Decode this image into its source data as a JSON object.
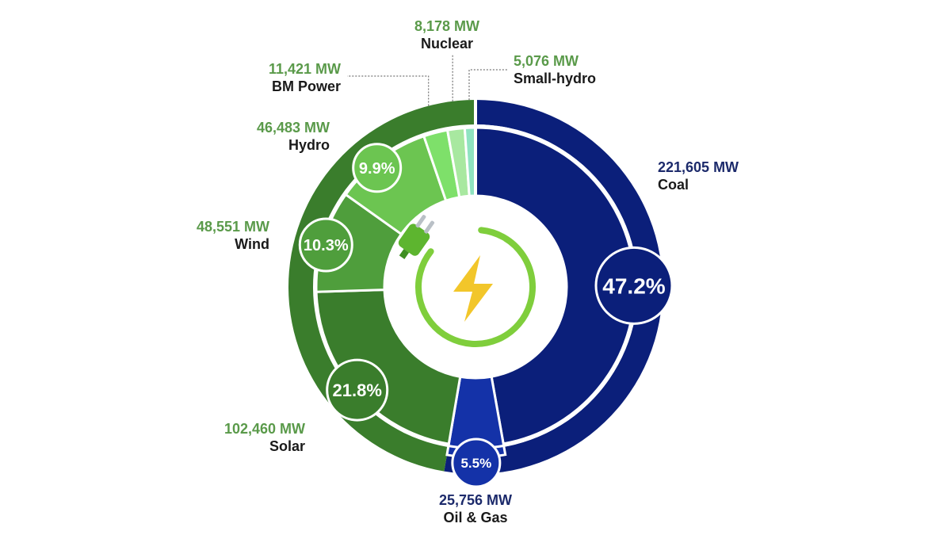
{
  "chart_data": {
    "type": "pie",
    "slices": [
      {
        "name": "Coal",
        "value": 221605,
        "value_label": "221,605 MW",
        "percent_label": "47.2%",
        "color": "#0b1f7a",
        "value_color": "#1c2a6b"
      },
      {
        "name": "Oil & Gas",
        "value": 25756,
        "value_label": "25,756 MW",
        "percent_label": "5.5%",
        "color": "#1432a8",
        "value_color": "#1c2a6b"
      },
      {
        "name": "Solar",
        "value": 102460,
        "value_label": "102,460 MW",
        "percent_label": "21.8%",
        "color": "#3a7d2c",
        "value_color": "#5a9a4a"
      },
      {
        "name": "Wind",
        "value": 48551,
        "value_label": "48,551 MW",
        "percent_label": "10.3%",
        "color": "#4f9e3c",
        "value_color": "#5a9a4a"
      },
      {
        "name": "Hydro",
        "value": 46483,
        "value_label": "46,483 MW",
        "percent_label": "9.9%",
        "color": "#6cc551",
        "value_color": "#5a9a4a"
      },
      {
        "name": "BM Power",
        "value": 11421,
        "value_label": "11,421 MW",
        "percent_label": "",
        "color": "#7ee06a",
        "value_color": "#5a9a4a"
      },
      {
        "name": "Nuclear",
        "value": 8178,
        "value_label": "8,178 MW",
        "percent_label": "",
        "color": "#a8e8a0",
        "value_color": "#5a9a4a"
      },
      {
        "name": "Small-hydro",
        "value": 5076,
        "value_label": "5,076 MW",
        "percent_label": "",
        "color": "#8fe3c0",
        "value_color": "#5a9a4a"
      }
    ],
    "center_icon": "power-plug-lightning-icon",
    "ring_colors": {
      "coal_ring": "#0b1f7a",
      "green_ring": "#3a7d2c"
    }
  }
}
